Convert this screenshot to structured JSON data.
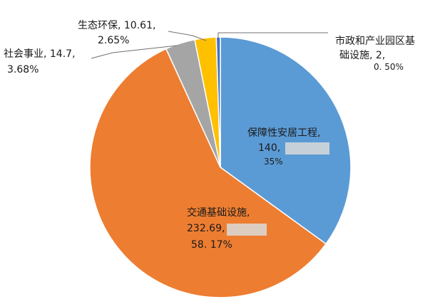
{
  "chart_data": {
    "type": "pie",
    "title": "",
    "slices": [
      {
        "name": "保障性安居工程",
        "value": 140,
        "percent": "35%",
        "color": "#5b9bd5"
      },
      {
        "name": "交通基础设施",
        "value": 232.69,
        "percent": "58.17%",
        "color": "#ed7d31"
      },
      {
        "name": "社会事业",
        "value": 14.7,
        "percent": "3.68%",
        "color": "#a5a5a5"
      },
      {
        "name": "生态环保",
        "value": 10.61,
        "percent": "2.65%",
        "color": "#ffc000"
      },
      {
        "name": "市政和产业园区基础设施",
        "value": 2,
        "percent": "0.50%",
        "color": "#4472c4"
      }
    ],
    "labels": {
      "housing_name": "保障性安居工程,",
      "housing_value": "140,",
      "housing_pct": "35%",
      "transport_name": "交通基础设施,",
      "transport_value": "232.69,",
      "transport_pct": "58. 17%",
      "social_line1": "社会事业, 14.7,",
      "social_line2": "3.68%",
      "eco_line1": "生态环保, 10.61,",
      "eco_line2": "2.65%",
      "municipal_line1": "市政和产业园区基",
      "municipal_line2": "础设施, 2,",
      "municipal_line3": "0. 50%"
    }
  }
}
